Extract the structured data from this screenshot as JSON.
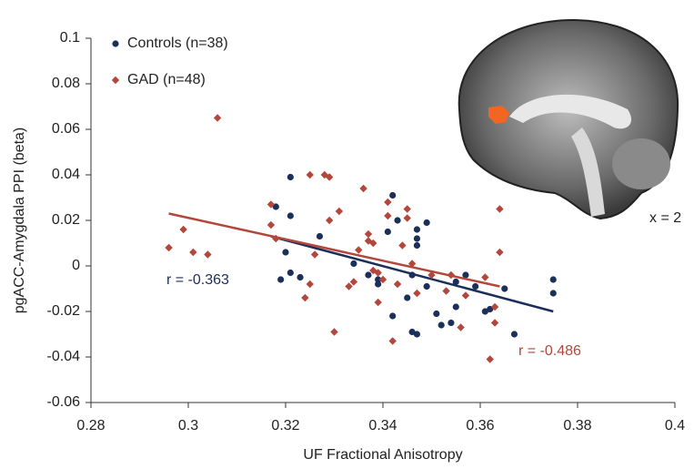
{
  "chart_data": {
    "type": "scatter",
    "xlabel": "UF Fractional Anisotropy",
    "ylabel": "pgACC-Amygdala PPI (beta)",
    "xlim": [
      0.28,
      0.4
    ],
    "xticks": [
      0.28,
      0.3,
      0.32,
      0.34,
      0.36,
      0.38,
      0.4
    ],
    "ylim": [
      -0.06,
      0.1
    ],
    "yticks": [
      -0.06,
      -0.04,
      -0.02,
      0,
      0.02,
      0.04,
      0.06,
      0.08,
      0.1
    ],
    "grid": false,
    "legend": "upper left",
    "series": [
      {
        "name": "Controls (n=38)",
        "color": "#1b2f5b",
        "marker": "circle",
        "x": [
          0.318,
          0.321,
          0.321,
          0.319,
          0.32,
          0.321,
          0.323,
          0.327,
          0.334,
          0.337,
          0.342,
          0.341,
          0.343,
          0.342,
          0.339,
          0.346,
          0.345,
          0.346,
          0.347,
          0.347,
          0.347,
          0.347,
          0.349,
          0.349,
          0.351,
          0.352,
          0.354,
          0.355,
          0.355,
          0.357,
          0.359,
          0.361,
          0.362,
          0.365,
          0.367,
          0.375,
          0.375,
          0.339
        ],
        "values": [
          0.026,
          0.039,
          0.022,
          -0.006,
          0.006,
          -0.003,
          -0.005,
          0.013,
          0.001,
          -0.004,
          0.031,
          0.015,
          0.02,
          -0.022,
          -0.008,
          -0.004,
          -0.014,
          -0.029,
          -0.03,
          0.016,
          0.012,
          0.009,
          0.019,
          -0.009,
          -0.021,
          -0.026,
          -0.025,
          -0.007,
          -0.018,
          -0.004,
          -0.009,
          -0.02,
          -0.019,
          -0.01,
          -0.03,
          -0.006,
          -0.012,
          -0.006
        ],
        "trend": {
          "x": [
            0.317,
            0.375
          ],
          "values": [
            0.013,
            -0.02
          ]
        }
      },
      {
        "name": "GAD (n=48)",
        "color": "#b3473b",
        "marker": "diamond",
        "x": [
          0.296,
          0.299,
          0.301,
          0.304,
          0.306,
          0.317,
          0.317,
          0.318,
          0.324,
          0.325,
          0.325,
          0.326,
          0.328,
          0.329,
          0.329,
          0.33,
          0.331,
          0.333,
          0.334,
          0.335,
          0.336,
          0.337,
          0.337,
          0.338,
          0.338,
          0.339,
          0.339,
          0.34,
          0.341,
          0.341,
          0.342,
          0.343,
          0.344,
          0.345,
          0.345,
          0.346,
          0.347,
          0.35,
          0.353,
          0.354,
          0.356,
          0.357,
          0.361,
          0.362,
          0.363,
          0.363,
          0.364,
          0.364
        ],
        "values": [
          0.008,
          0.016,
          0.006,
          0.005,
          0.065,
          0.027,
          0.018,
          0.012,
          -0.014,
          0.04,
          -0.008,
          0.005,
          0.04,
          0.039,
          0.02,
          -0.029,
          0.024,
          -0.009,
          -0.007,
          0.007,
          0.034,
          0.011,
          0.014,
          -0.002,
          0.01,
          -0.003,
          -0.016,
          -0.006,
          0.022,
          0.028,
          -0.033,
          -0.008,
          0.009,
          0.021,
          0.025,
          0.001,
          -0.012,
          -0.004,
          -0.011,
          -0.004,
          -0.027,
          -0.013,
          -0.005,
          -0.041,
          -0.025,
          -0.018,
          0.006,
          0.025
        ],
        "trend": {
          "x": [
            0.296,
            0.364
          ],
          "values": [
            0.023,
            -0.009
          ]
        }
      }
    ],
    "annotations": [
      "r = -0.363",
      "r = -0.486",
      "x = 2"
    ]
  }
}
